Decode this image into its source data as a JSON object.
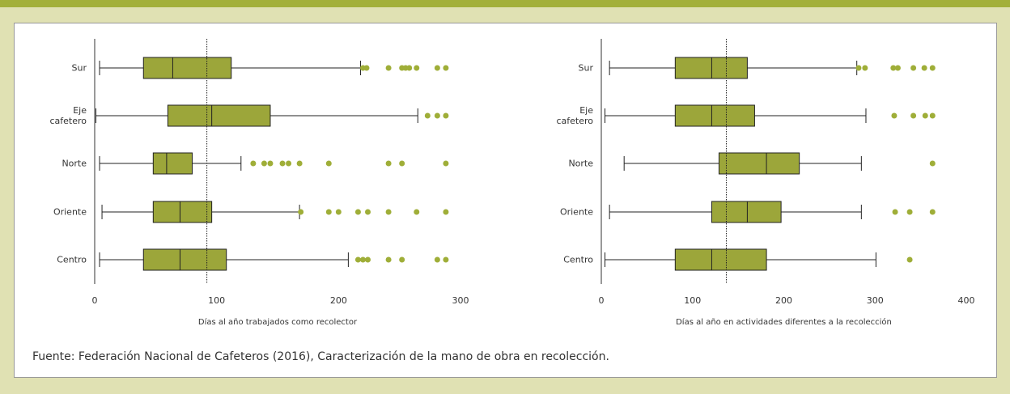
{
  "chart_data": [
    {
      "type": "box",
      "categories": [
        "Sur",
        "Eje cafetero",
        "Norte",
        "Oriente",
        "Centro"
      ],
      "boxes": [
        {
          "whislo": 4,
          "q1": 40,
          "med": 64,
          "q3": 112,
          "whishi": 218,
          "fliers": [
            220,
            223,
            241,
            252,
            255,
            258,
            264,
            281,
            288
          ]
        },
        {
          "whislo": 1,
          "q1": 60,
          "med": 96,
          "q3": 144,
          "whishi": 265,
          "fliers": [
            273,
            281,
            288
          ]
        },
        {
          "whislo": 4,
          "q1": 48,
          "med": 59,
          "q3": 80,
          "whishi": 120,
          "fliers": [
            130,
            139,
            144,
            154,
            159,
            168,
            192,
            241,
            252,
            288
          ]
        },
        {
          "whislo": 6,
          "q1": 48,
          "med": 70,
          "q3": 96,
          "whishi": 168,
          "fliers": [
            169,
            192,
            200,
            216,
            224,
            241,
            264,
            288
          ]
        },
        {
          "whislo": 4,
          "q1": 40,
          "med": 70,
          "q3": 108,
          "whishi": 208,
          "fliers": [
            216,
            220,
            224,
            241,
            252,
            281,
            288
          ]
        }
      ],
      "color": "#9ca63a",
      "flier_color": "#9fae38",
      "reference_line": 92,
      "xlim": [
        0,
        300
      ],
      "xticks": [
        0,
        100,
        200,
        300
      ],
      "xlabel": "Días al año trabajados como recolector"
    },
    {
      "type": "box",
      "categories": [
        "Sur",
        "Eje cafetero",
        "Norte",
        "Oriente",
        "Centro"
      ],
      "boxes": [
        {
          "whislo": 9,
          "q1": 81,
          "med": 121,
          "q3": 160,
          "whishi": 280,
          "fliers": [
            282,
            289,
            320,
            325,
            342,
            354,
            363
          ]
        },
        {
          "whislo": 4,
          "q1": 81,
          "med": 121,
          "q3": 168,
          "whishi": 290,
          "fliers": [
            321,
            342,
            355,
            363
          ]
        },
        {
          "whislo": 25,
          "q1": 129,
          "med": 181,
          "q3": 217,
          "whishi": 285,
          "fliers": [
            363
          ]
        },
        {
          "whislo": 9,
          "q1": 121,
          "med": 160,
          "q3": 197,
          "whishi": 285,
          "fliers": [
            322,
            338,
            363
          ]
        },
        {
          "whislo": 4,
          "q1": 81,
          "med": 121,
          "q3": 181,
          "whishi": 301,
          "fliers": [
            338
          ]
        }
      ],
      "color": "#9ca63a",
      "flier_color": "#9fae38",
      "reference_line": 137,
      "xlim": [
        0,
        400
      ],
      "xticks": [
        0,
        100,
        200,
        300,
        400
      ],
      "xlabel": "Días al año en actividades diferentes a la recolección"
    }
  ],
  "source": "Fuente: Federación Nacional de Cafeteros (2016), Caracterización de la mano de obra en recolección."
}
